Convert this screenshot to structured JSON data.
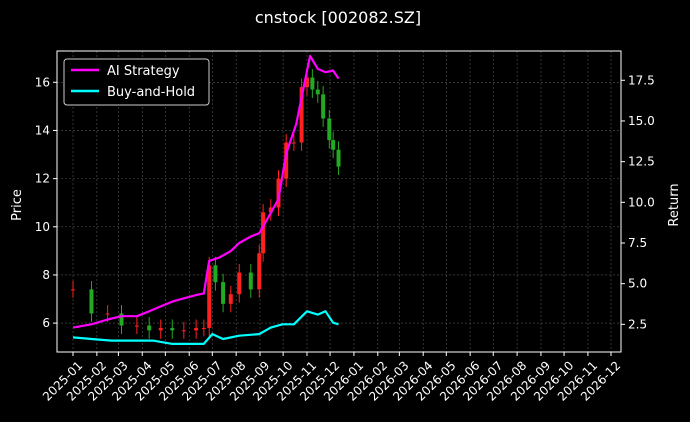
{
  "chart_data": {
    "type": "line",
    "title": "cnstock [002082.SZ]",
    "ylabel_left": "Price",
    "ylabel_right": "Return",
    "ylim_left": [
      4.8,
      17.3
    ],
    "ylim_right": [
      0.8,
      19.3
    ],
    "yticks_left": [
      "6",
      "8",
      "10",
      "12",
      "14",
      "16"
    ],
    "yticks_right": [
      "2.5",
      "5.0",
      "7.5",
      "10.0",
      "12.5",
      "15.0",
      "17.5"
    ],
    "xticks": [
      "2025-01",
      "2025-02",
      "2025-03",
      "2025-04",
      "2025-05",
      "2025-06",
      "2025-07",
      "2025-08",
      "2025-09",
      "2025-10",
      "2025-11",
      "2025-12",
      "2026-01",
      "2026-02",
      "2026-03",
      "2026-04",
      "2026-05",
      "2026-06",
      "2026-07",
      "2026-08",
      "2026-09",
      "2026-10",
      "2026-11",
      "2026-12"
    ],
    "grid": true,
    "legend_position": "top-left",
    "colors": {
      "ai_strategy": "#ff00ff",
      "buy_and_hold": "#00ffff",
      "candle_up": "#ff2020",
      "candle_down": "#22aa22",
      "background": "#000000",
      "text": "#ffffff",
      "grid": "#555555"
    },
    "series": [
      {
        "name": "AI Strategy",
        "axis": "right",
        "x": [
          "2025-01-01",
          "2025-01-25",
          "2025-02-15",
          "2025-03-05",
          "2025-03-25",
          "2025-04-10",
          "2025-04-25",
          "2025-05-10",
          "2025-05-25",
          "2025-06-10",
          "2025-06-20",
          "2025-06-27",
          "2025-07-10",
          "2025-07-25",
          "2025-08-05",
          "2025-08-20",
          "2025-08-31",
          "2025-09-12",
          "2025-09-25",
          "2025-10-05",
          "2025-10-18",
          "2025-10-30",
          "2025-11-05",
          "2025-11-15",
          "2025-11-25",
          "2025-12-05",
          "2025-12-12"
        ],
        "values": [
          2.3,
          2.5,
          2.8,
          3.0,
          3.0,
          3.3,
          3.6,
          3.9,
          4.1,
          4.3,
          4.4,
          6.4,
          6.6,
          7.0,
          7.5,
          7.9,
          8.1,
          9.1,
          10.2,
          13.0,
          14.8,
          17.6,
          19.0,
          18.2,
          18.0,
          18.1,
          17.6
        ]
      },
      {
        "name": "Buy-and-Hold",
        "axis": "right",
        "x": [
          "2025-01-01",
          "2025-01-25",
          "2025-02-20",
          "2025-03-20",
          "2025-04-15",
          "2025-05-10",
          "2025-06-01",
          "2025-06-20",
          "2025-07-01",
          "2025-07-15",
          "2025-08-05",
          "2025-08-31",
          "2025-09-15",
          "2025-09-30",
          "2025-10-15",
          "2025-11-01",
          "2025-11-15",
          "2025-11-25",
          "2025-12-05",
          "2025-12-12"
        ],
        "values": [
          1.7,
          1.6,
          1.5,
          1.5,
          1.5,
          1.3,
          1.3,
          1.3,
          1.9,
          1.6,
          1.8,
          1.9,
          2.3,
          2.5,
          2.5,
          3.3,
          3.1,
          3.3,
          2.6,
          2.5
        ]
      },
      {
        "type": "candlestick",
        "axis": "left",
        "x": [
          "2025-01-01",
          "2025-01-25",
          "2025-02-15",
          "2025-03-05",
          "2025-03-25",
          "2025-04-10",
          "2025-04-25",
          "2025-05-10",
          "2025-05-25",
          "2025-06-10",
          "2025-06-20",
          "2025-06-27",
          "2025-07-05",
          "2025-07-15",
          "2025-07-25",
          "2025-08-05",
          "2025-08-20",
          "2025-08-31",
          "2025-09-05",
          "2025-09-15",
          "2025-09-25",
          "2025-10-05",
          "2025-10-15",
          "2025-10-25",
          "2025-11-01",
          "2025-11-08",
          "2025-11-15",
          "2025-11-22",
          "2025-11-30",
          "2025-12-05",
          "2025-12-12"
        ],
        "close": [
          7.4,
          6.4,
          6.4,
          5.9,
          5.9,
          5.7,
          5.8,
          5.7,
          5.7,
          5.8,
          5.8,
          8.4,
          7.7,
          6.8,
          7.2,
          8.1,
          7.4,
          8.9,
          10.6,
          10.8,
          12.0,
          13.5,
          13.5,
          15.8,
          16.2,
          15.7,
          15.5,
          14.5,
          13.6,
          13.2,
          12.5
        ]
      }
    ]
  }
}
